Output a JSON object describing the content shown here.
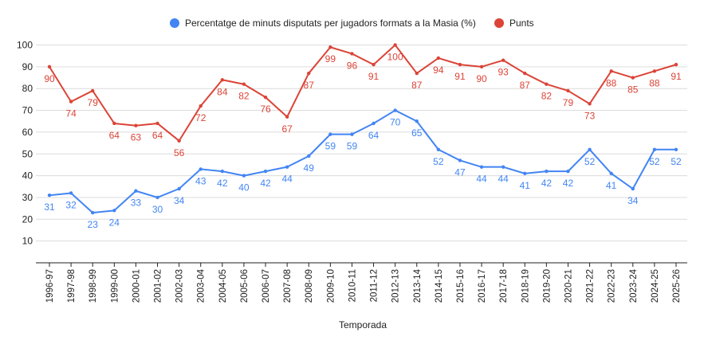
{
  "chart_data": {
    "type": "line",
    "title": "",
    "xlabel": "Temporada",
    "ylabel": "",
    "ylim": [
      0,
      100
    ],
    "yticks": [
      10,
      20,
      30,
      40,
      50,
      60,
      70,
      80,
      90,
      100
    ],
    "grid": true,
    "legend_position": "top-center",
    "categories": [
      "1996-97",
      "1997-98",
      "1998-99",
      "1999-00",
      "2000-01",
      "2001-02",
      "2002-03",
      "2003-04",
      "2004-05",
      "2005-06",
      "2006-07",
      "2007-08",
      "2008-09",
      "2009-10",
      "2010-11",
      "2011-12",
      "2012-13",
      "2013-14",
      "2014-15",
      "2015-16",
      "2016-17",
      "2017-18",
      "2018-19",
      "2019-20",
      "2020-21",
      "2021-22",
      "2022-23",
      "2023-24",
      "2024-25",
      "2025-26"
    ],
    "series": [
      {
        "name": "Percentatge de minuts disputats per jugadors formats a la Masia (%)",
        "color": "#4285f4",
        "values": [
          31,
          32,
          23,
          24,
          33,
          30,
          34,
          43,
          42,
          40,
          42,
          44,
          49,
          59,
          59,
          64,
          70,
          65,
          52,
          47,
          44,
          44,
          41,
          42,
          42,
          52,
          41,
          34,
          52,
          52
        ],
        "labels": [
          "31",
          "32",
          "23",
          "24",
          "33",
          "30",
          "34",
          "43",
          "42",
          "40",
          "42",
          "44",
          "49",
          "59",
          "59",
          "64",
          "70",
          "65",
          "52",
          "47",
          "44",
          "44",
          "41",
          "42",
          "42",
          "52",
          "41",
          "34",
          "52",
          "52"
        ]
      },
      {
        "name": "Punts",
        "color": "#db4437",
        "values": [
          90,
          74,
          79,
          64,
          63,
          64,
          56,
          72,
          84,
          82,
          76,
          67,
          87,
          99,
          96,
          91,
          100,
          87,
          94,
          91,
          90,
          93,
          87,
          82,
          79,
          73,
          88,
          85,
          88,
          91
        ],
        "labels": [
          "90",
          "74",
          "79",
          "64",
          "63",
          "64",
          "56",
          "72",
          "84",
          "82",
          "76",
          "67",
          "87",
          "99",
          "96",
          "91",
          "100",
          "87",
          "94",
          "91",
          "90",
          "93",
          "87",
          "82",
          "79",
          "73",
          "88",
          "85",
          "88",
          "91"
        ]
      }
    ]
  }
}
